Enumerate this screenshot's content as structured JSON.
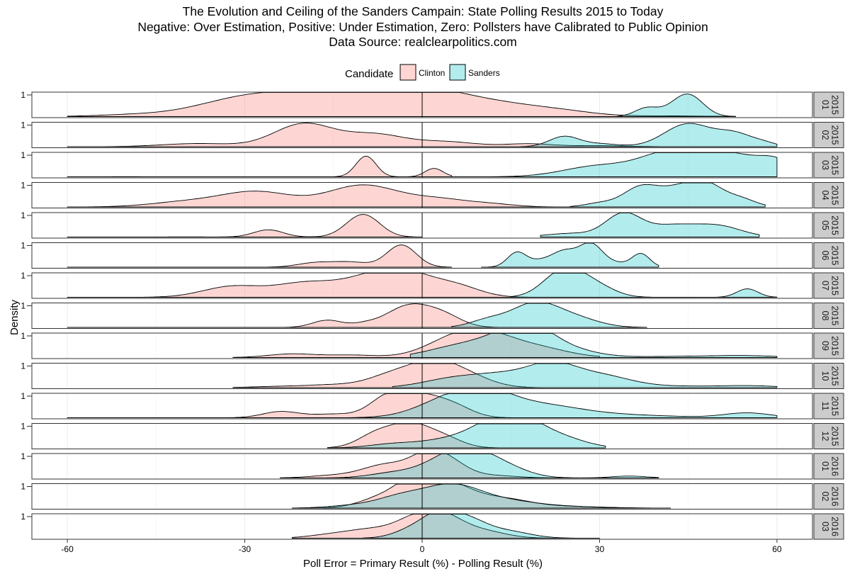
{
  "chart_data": {
    "type": "area",
    "subtype": "faceted density plot",
    "title_lines": [
      "The Evolution and Ceiling of the Sanders Campain: State Polling Results 2015 to Today",
      "Negative: Over Estimation, Positive: Under Estimation, Zero: Pollsters have Calibrated to Public Opinion",
      "Data Source: realclearpolitics.com"
    ],
    "xlabel": "Poll Error = Primary Result (%) - Polling Result (%)",
    "ylabel": "Density",
    "xlim": [
      -66,
      66
    ],
    "xticks": [
      -60,
      -30,
      0,
      30,
      60
    ],
    "xtick_labels": [
      "-60",
      "-30",
      "0",
      "30",
      "60"
    ],
    "ytick_label": "1",
    "vline_x": 0,
    "grid": true,
    "legend": {
      "title": "Candidate",
      "placement": "top",
      "entries": [
        {
          "name": "Clinton",
          "fill": "#F8766D",
          "stroke": "#000000"
        },
        {
          "name": "Sanders",
          "fill": "#00BFC4",
          "stroke": "#000000"
        }
      ]
    },
    "colors": {
      "Clinton": "#F8766D",
      "Sanders": "#00BFC4"
    },
    "fill_opacity": 0.3,
    "panels": [
      {
        "label": "2015\n01",
        "Clinton": {
          "range": [
            -60,
            53
          ],
          "peaks": [
            [
              -50,
              0.06,
              6
            ],
            [
              -28,
              0.86,
              9
            ],
            [
              -12,
              0.84,
              8
            ],
            [
              2,
              0.9,
              7
            ],
            [
              15,
              0.42,
              7
            ],
            [
              25,
              0.12,
              5
            ],
            [
              40,
              0.03,
              8
            ]
          ]
        },
        "Sanders": {
          "range": [
            33,
            53
          ],
          "peaks": [
            [
              38,
              0.36,
              2
            ],
            [
              45,
              0.9,
              2.5
            ],
            [
              42,
              0.1,
              2
            ]
          ]
        }
      },
      {
        "label": "2015\n02",
        "Clinton": {
          "range": [
            -60,
            40
          ],
          "peaks": [
            [
              -38,
              0.13,
              6
            ],
            [
              -20,
              0.95,
              5
            ],
            [
              -8,
              0.5,
              5
            ],
            [
              4,
              0.2,
              5
            ],
            [
              18,
              0.12,
              4
            ],
            [
              30,
              0.04,
              5
            ]
          ]
        },
        "Sanders": {
          "range": [
            15,
            60
          ],
          "peaks": [
            [
              24,
              0.42,
              2.5
            ],
            [
              30,
              0.12,
              3
            ],
            [
              45,
              0.95,
              4
            ],
            [
              53,
              0.5,
              3
            ],
            [
              58,
              0.12,
              2
            ]
          ]
        }
      },
      {
        "label": "2015\n03",
        "Clinton": {
          "range": [
            -60,
            5
          ],
          "peaks": [
            [
              -9.5,
              0.86,
              1.7
            ],
            [
              2,
              0.35,
              1.5
            ],
            [
              -50,
              0.005,
              5
            ]
          ]
        },
        "Sanders": {
          "range": [
            -15,
            60
          ],
          "peaks": [
            [
              30,
              0.45,
              6
            ],
            [
              42,
              0.95,
              5
            ],
            [
              52,
              0.9,
              5
            ],
            [
              60,
              0.55,
              3
            ]
          ]
        }
      },
      {
        "label": "2015\n04",
        "Clinton": {
          "range": [
            -60,
            25
          ],
          "peaks": [
            [
              -40,
              0.2,
              6
            ],
            [
              -28,
              0.62,
              6
            ],
            [
              -10,
              0.9,
              6
            ],
            [
              3,
              0.3,
              5
            ],
            [
              12,
              0.1,
              4
            ]
          ]
        },
        "Sanders": {
          "range": [
            25,
            58
          ],
          "peaks": [
            [
              30,
              0.15,
              2.5
            ],
            [
              37,
              0.82,
              3
            ],
            [
              43,
              0.6,
              3
            ],
            [
              48,
              0.92,
              3
            ],
            [
              54,
              0.3,
              2.5
            ]
          ]
        }
      },
      {
        "label": "2015\n05",
        "Clinton": {
          "range": [
            -60,
            0
          ],
          "peaks": [
            [
              -26,
              0.3,
              2.5
            ],
            [
              -10,
              0.94,
              2.8
            ],
            [
              -40,
              0.005,
              6
            ]
          ]
        },
        "Sanders": {
          "range": [
            20,
            57
          ],
          "peaks": [
            [
              25,
              0.15,
              4
            ],
            [
              34,
              0.95,
              3
            ],
            [
              42,
              0.45,
              4
            ],
            [
              50,
              0.45,
              4
            ]
          ]
        }
      },
      {
        "label": "2015\n06",
        "Clinton": {
          "range": [
            -60,
            5
          ],
          "peaks": [
            [
              -18,
              0.18,
              3
            ],
            [
              -12,
              0.2,
              3
            ],
            [
              -3.5,
              0.92,
              2.5
            ]
          ]
        },
        "Sanders": {
          "range": [
            10,
            40
          ],
          "peaks": [
            [
              16,
              0.6,
              1.6
            ],
            [
              20,
              0.25,
              2
            ],
            [
              24,
              0.62,
              2
            ],
            [
              28.5,
              0.96,
              2
            ],
            [
              33,
              0.15,
              2
            ],
            [
              37,
              0.55,
              1.5
            ]
          ]
        }
      },
      {
        "label": "2015\n07",
        "Clinton": {
          "range": [
            -60,
            18
          ],
          "peaks": [
            [
              -32,
              0.45,
              5
            ],
            [
              -20,
              0.55,
              5
            ],
            [
              -10,
              0.55,
              5
            ],
            [
              -3,
              0.95,
              5
            ],
            [
              6,
              0.4,
              4
            ]
          ]
        },
        "Sanders": {
          "range": [
            15,
            60
          ],
          "peaks": [
            [
              22,
              0.35,
              3
            ],
            [
              25,
              0.95,
              3.2
            ],
            [
              30,
              0.35,
              3
            ],
            [
              55,
              0.35,
              1.8
            ]
          ]
        }
      },
      {
        "label": "2015\n08",
        "Clinton": {
          "range": [
            -60,
            15
          ],
          "peaks": [
            [
              -16,
              0.3,
              2.5
            ],
            [
              -10,
              0.1,
              2
            ],
            [
              -2,
              0.92,
              4
            ],
            [
              4,
              0.35,
              3
            ]
          ]
        },
        "Sanders": {
          "range": [
            5,
            38
          ],
          "peaks": [
            [
              11,
              0.28,
              3
            ],
            [
              19,
              0.98,
              4
            ],
            [
              26,
              0.35,
              4
            ]
          ]
        }
      },
      {
        "label": "2015\n09",
        "Clinton": {
          "range": [
            -32,
            30
          ],
          "peaks": [
            [
              -22,
              0.15,
              4
            ],
            [
              -12,
              0.1,
              4
            ],
            [
              5,
              0.6,
              5
            ],
            [
              11,
              0.8,
              5
            ],
            [
              20,
              0.35,
              5
            ]
          ]
        },
        "Sanders": {
          "range": [
            -2,
            60
          ],
          "peaks": [
            [
              5,
              0.35,
              5
            ],
            [
              13,
              0.6,
              5
            ],
            [
              18,
              0.95,
              4
            ],
            [
              24,
              0.35,
              5
            ],
            [
              45,
              0.05,
              8
            ],
            [
              55,
              0.06,
              5
            ]
          ]
        }
      },
      {
        "label": "2015\n10",
        "Clinton": {
          "range": [
            -32,
            20
          ],
          "peaks": [
            [
              -25,
              0.04,
              4
            ],
            [
              -15,
              0.12,
              5
            ],
            [
              -5,
              0.5,
              4
            ],
            [
              2,
              0.95,
              4
            ],
            [
              8,
              0.4,
              4
            ]
          ]
        },
        "Sanders": {
          "range": [
            -5,
            60
          ],
          "peaks": [
            [
              5,
              0.35,
              5
            ],
            [
              14,
              0.5,
              5
            ],
            [
              22,
              0.82,
              4
            ],
            [
              30,
              0.5,
              5
            ],
            [
              42,
              0.06,
              6
            ],
            [
              55,
              0.08,
              5
            ]
          ]
        }
      },
      {
        "label": "2015\n11",
        "Clinton": {
          "range": [
            -60,
            18
          ],
          "peaks": [
            [
              -24,
              0.25,
              3
            ],
            [
              -15,
              0.15,
              4
            ],
            [
              -6,
              0.72,
              3
            ],
            [
              0,
              0.9,
              4
            ],
            [
              6,
              0.3,
              3
            ]
          ]
        },
        "Sanders": {
          "range": [
            -60,
            60
          ],
          "peaks": [
            [
              3,
              0.5,
              5
            ],
            [
              10,
              0.95,
              5
            ],
            [
              20,
              0.5,
              7
            ],
            [
              35,
              0.1,
              8
            ],
            [
              55,
              0.2,
              4
            ]
          ]
        }
      },
      {
        "label": "2015\n12",
        "Clinton": {
          "range": [
            -16,
            15
          ],
          "peaks": [
            [
              -8,
              0.5,
              3
            ],
            [
              -2,
              0.96,
              3.5
            ],
            [
              4,
              0.35,
              3
            ]
          ]
        },
        "Sanders": {
          "range": [
            -16,
            31
          ],
          "peaks": [
            [
              -5,
              0.15,
              4
            ],
            [
              5,
              0.35,
              5
            ],
            [
              12,
              0.75,
              4
            ],
            [
              17,
              0.96,
              4
            ],
            [
              24,
              0.35,
              4
            ]
          ]
        }
      },
      {
        "label": "2016\n01",
        "Clinton": {
          "range": [
            -24,
            25
          ],
          "peaks": [
            [
              -15,
              0.1,
              4
            ],
            [
              -6,
              0.55,
              4
            ],
            [
              1,
              0.85,
              3
            ],
            [
              5,
              0.5,
              3
            ],
            [
              12,
              0.1,
              4
            ]
          ]
        },
        "Sanders": {
          "range": [
            -24,
            40
          ],
          "peaks": [
            [
              -5,
              0.2,
              4
            ],
            [
              3,
              0.5,
              4
            ],
            [
              8,
              0.95,
              4
            ],
            [
              14,
              0.4,
              4
            ],
            [
              35,
              0.08,
              3
            ]
          ]
        }
      },
      {
        "label": "2016\n02",
        "Clinton": {
          "range": [
            -22,
            42
          ],
          "peaks": [
            [
              -6,
              0.5,
              4
            ],
            [
              -1,
              0.8,
              3
            ],
            [
              4,
              0.96,
              4
            ],
            [
              13,
              0.4,
              5
            ],
            [
              25,
              0.06,
              6
            ]
          ]
        },
        "Sanders": {
          "range": [
            -22,
            38
          ],
          "peaks": [
            [
              -12,
              0.1,
              4
            ],
            [
              -4,
              0.4,
              4
            ],
            [
              5,
              0.95,
              5
            ],
            [
              15,
              0.25,
              5
            ],
            [
              25,
              0.06,
              5
            ]
          ]
        }
      },
      {
        "label": "2016\n03",
        "Clinton": {
          "range": [
            -22,
            25
          ],
          "peaks": [
            [
              -15,
              0.15,
              4
            ],
            [
              -8,
              0.35,
              4
            ],
            [
              -2,
              0.5,
              3
            ],
            [
              3,
              0.95,
              3.5
            ],
            [
              10,
              0.3,
              4
            ]
          ]
        },
        "Sanders": {
          "range": [
            -10,
            30
          ],
          "peaks": [
            [
              -2,
              0.3,
              3
            ],
            [
              3,
              0.95,
              3
            ],
            [
              8,
              0.6,
              3
            ],
            [
              14,
              0.3,
              4
            ]
          ]
        }
      }
    ]
  }
}
